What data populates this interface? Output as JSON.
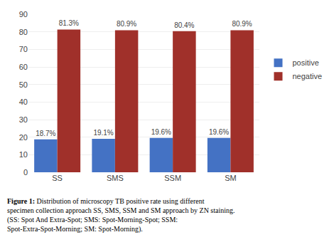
{
  "chart_data": {
    "type": "bar",
    "categories": [
      "SS",
      "SMS",
      "SSM",
      "SM"
    ],
    "series": [
      {
        "name": "positive",
        "color": "#4472C4",
        "values": [
          18.7,
          19.1,
          19.6,
          19.6
        ],
        "value_labels": [
          "18.7%",
          "19.1%",
          "19.6%",
          "19.6%"
        ]
      },
      {
        "name": "negative",
        "color": "#A0302A",
        "values": [
          81.3,
          80.9,
          80.4,
          80.9
        ],
        "value_labels": [
          "81.3%",
          "80.9%",
          "80.4%",
          "80.9%"
        ]
      }
    ],
    "ylim": [
      0,
      90
    ],
    "yticks": [
      0,
      10,
      20,
      30,
      40,
      50,
      60,
      70,
      80,
      90
    ],
    "grid": true,
    "legend": "right",
    "data_labels": true,
    "annotations": [
      "Figure 1: Distribution of microscopy TB positive rate using different specimen collection approach SS, SMS, SSM and SM approach by ZN staining. (SS: Spot And Extra-Spot; SMS: Spot-Morning-Spot; SSM: Spot-Extra-Spot-Morning; SM: Spot-Morning)."
    ]
  }
}
